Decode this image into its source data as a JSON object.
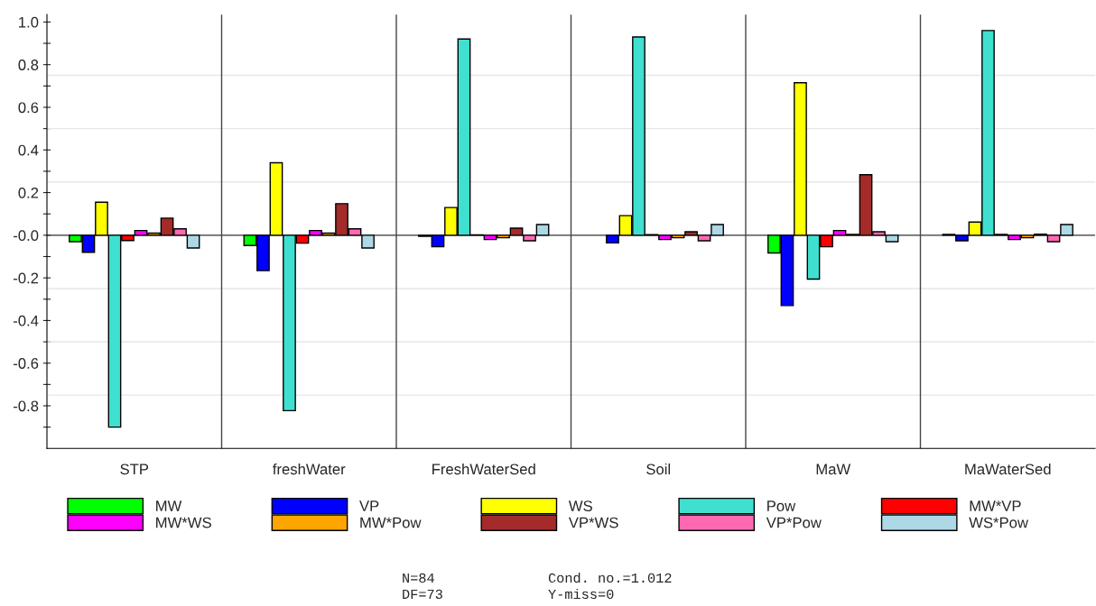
{
  "chart_data": {
    "type": "bar",
    "categories": [
      "STP",
      "freshWater",
      "FreshWaterSed",
      "Soil",
      "MaW",
      "MaWaterSed"
    ],
    "series": [
      {
        "name": "MW",
        "color": "#00ff00",
        "values": [
          -0.03,
          -0.048,
          -0.005,
          null,
          -0.083,
          0.004
        ]
      },
      {
        "name": "VP",
        "color": "#0000ff",
        "values": [
          -0.08,
          -0.166,
          -0.054,
          -0.036,
          -0.33,
          -0.026
        ]
      },
      {
        "name": "WS",
        "color": "#ffff00",
        "values": [
          0.155,
          0.34,
          0.13,
          0.092,
          0.715,
          0.062
        ]
      },
      {
        "name": "Pow",
        "color": "#40e0d0",
        "values": [
          -0.9,
          -0.823,
          0.92,
          0.93,
          -0.206,
          0.96
        ]
      },
      {
        "name": "MW*VP",
        "color": "#ff0000",
        "values": [
          -0.025,
          -0.037,
          0.002,
          0.003,
          -0.054,
          0.004
        ]
      },
      {
        "name": "MW*WS",
        "color": "#ff00ff",
        "values": [
          0.022,
          0.022,
          -0.02,
          -0.02,
          0.022,
          -0.02
        ]
      },
      {
        "name": "MW*Pow",
        "color": "#ffa500",
        "values": [
          0.01,
          0.01,
          -0.012,
          -0.012,
          0.004,
          -0.012
        ]
      },
      {
        "name": "VP*WS",
        "color": "#a52a2a",
        "values": [
          0.08,
          0.148,
          0.033,
          0.016,
          0.284,
          0.005
        ]
      },
      {
        "name": "VP*Pow",
        "color": "#ff69b4",
        "values": [
          0.03,
          0.03,
          -0.026,
          -0.026,
          0.016,
          -0.03
        ]
      },
      {
        "name": "WS*Pow",
        "color": "#add8e6",
        "values": [
          -0.06,
          -0.06,
          0.05,
          0.05,
          -0.03,
          0.05
        ]
      }
    ],
    "ylim": [
      -1.0,
      1.035
    ],
    "yticks": [
      {
        "value": 1.0,
        "label": "1.0"
      },
      {
        "value": 0.9,
        "label": null
      },
      0.8,
      {
        "value": 0.7,
        "label": null
      },
      0.6,
      {
        "value": 0.5,
        "label": null
      },
      0.4,
      {
        "value": 0.3,
        "label": null
      },
      0.2,
      {
        "value": 0.1,
        "label": null
      },
      {
        "value": 0,
        "label": "-0.0"
      },
      {
        "value": -0.1,
        "label": null
      },
      -0.2,
      {
        "value": -0.3,
        "label": null
      },
      -0.4,
      {
        "value": -0.5,
        "label": null
      },
      -0.6,
      {
        "value": -0.7,
        "label": null
      },
      -0.8,
      {
        "value": -0.9,
        "label": null
      }
    ],
    "ref_lines": [
      {
        "axis": "y",
        "value": 0.75,
        "color": "#e6e6e6"
      },
      {
        "axis": "y",
        "value": 0.5,
        "color": "#e6e6e6"
      },
      {
        "axis": "y",
        "value": 0.25,
        "color": "#e6e6e6"
      },
      {
        "axis": "y",
        "value": -0.25,
        "color": "#e6e6e6"
      },
      {
        "axis": "y",
        "value": -0.5,
        "color": "#e6e6e6"
      },
      {
        "axis": "y",
        "value": -0.75,
        "color": "#e6e6e6"
      },
      {
        "axis": "y",
        "value": 0,
        "color": "#333333"
      }
    ],
    "grid": false,
    "legend": "bottom",
    "annotations": [
      "N=84",
      "Cond. no.=1.012",
      "DF=73",
      "Y-miss=0"
    ]
  }
}
